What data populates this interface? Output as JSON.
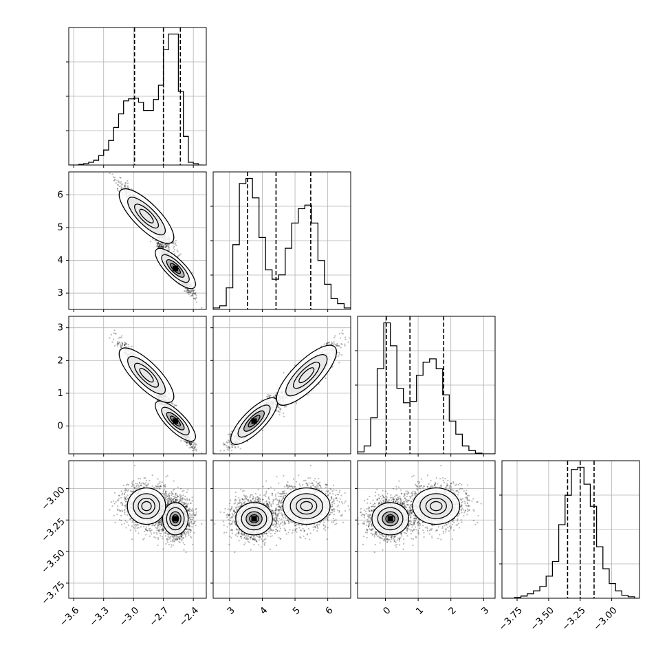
{
  "chart_data": {
    "type": "corner",
    "grid": true,
    "quantiles": [
      0.16,
      0.5,
      0.84
    ],
    "params": [
      {
        "range": [
          -3.65,
          -2.27
        ],
        "ticks": [
          -3.6,
          -3.3,
          -3.0,
          -2.7,
          -2.4
        ],
        "tick_labels": [
          "−3.6",
          "−3.3",
          "−3.0",
          "−2.7",
          "−2.4"
        ],
        "quantile_values": [
          -2.99,
          -2.7,
          -2.53
        ]
      },
      {
        "range": [
          2.5,
          6.7
        ],
        "ticks": [
          3,
          4,
          5,
          6
        ],
        "tick_labels": [
          "3",
          "4",
          "5",
          "6"
        ],
        "quantile_values": [
          3.55,
          4.42,
          5.48
        ]
      },
      {
        "range": [
          -0.85,
          3.35
        ],
        "ticks": [
          0,
          1,
          2,
          3
        ],
        "tick_labels": [
          "0",
          "1",
          "2",
          "3"
        ],
        "quantile_values": [
          0.03,
          0.75,
          1.78
        ]
      },
      {
        "range": [
          -3.87,
          -2.78
        ],
        "ticks": [
          -3.75,
          -3.5,
          -3.25,
          -3.0
        ],
        "tick_labels": [
          "−3.75",
          "−3.50",
          "−3.25",
          "−3.00"
        ],
        "quantile_values": [
          -3.35,
          -3.25,
          -3.14
        ]
      }
    ],
    "histograms": [
      {
        "bins": [
          -3.65,
          -3.6,
          -3.55,
          -3.5,
          -3.45,
          -3.4,
          -3.35,
          -3.3,
          -3.25,
          -3.2,
          -3.15,
          -3.1,
          -3.05,
          -3.0,
          -2.95,
          -2.9,
          -2.85,
          -2.8,
          -2.75,
          -2.7,
          -2.65,
          -2.6,
          -2.55,
          -2.5,
          -2.45,
          -2.4,
          -2.35,
          -2.3
        ],
        "counts": [
          0,
          0,
          1,
          2,
          4,
          7,
          14,
          22,
          36,
          55,
          75,
          94,
          97,
          98,
          92,
          80,
          80,
          96,
          117,
          169,
          192,
          192,
          108,
          42,
          4,
          2,
          0
        ]
      },
      {
        "bins": [
          2.5,
          2.7,
          2.9,
          3.1,
          3.3,
          3.5,
          3.7,
          3.9,
          4.1,
          4.3,
          4.5,
          4.7,
          4.9,
          5.1,
          5.3,
          5.5,
          5.7,
          5.9,
          6.1,
          6.3,
          6.5,
          6.7
        ],
        "counts": [
          2,
          5,
          30,
          90,
          175,
          182,
          155,
          100,
          55,
          42,
          48,
          85,
          120,
          140,
          145,
          120,
          68,
          35,
          15,
          8,
          2
        ]
      },
      {
        "bins": [
          -0.85,
          -0.65,
          -0.45,
          -0.25,
          -0.05,
          0.15,
          0.35,
          0.55,
          0.75,
          0.95,
          1.15,
          1.35,
          1.55,
          1.75,
          1.95,
          2.15,
          2.35,
          2.55,
          2.75,
          2.95,
          3.15,
          3.35
        ],
        "counts": [
          3,
          12,
          55,
          130,
          200,
          165,
          100,
          78,
          80,
          120,
          140,
          145,
          130,
          90,
          50,
          30,
          12,
          5,
          1,
          0,
          0
        ]
      },
      {
        "bins": [
          -3.87,
          -3.82,
          -3.77,
          -3.72,
          -3.67,
          -3.62,
          -3.57,
          -3.52,
          -3.47,
          -3.42,
          -3.37,
          -3.32,
          -3.27,
          -3.22,
          -3.17,
          -3.12,
          -3.07,
          -3.02,
          -2.97,
          -2.92,
          -2.87,
          -2.82,
          -2.78
        ],
        "counts": [
          0,
          0,
          1,
          3,
          6,
          10,
          16,
          30,
          50,
          100,
          140,
          175,
          178,
          155,
          125,
          70,
          40,
          20,
          10,
          4,
          2,
          0
        ]
      }
    ],
    "pair_modes": [
      {
        "weight": 0.55,
        "mean": [
          -2.58,
          3.75,
          0.15,
          -3.24
        ],
        "sd": [
          0.08,
          0.35,
          0.35,
          0.08
        ]
      },
      {
        "weight": 0.45,
        "mean": [
          -2.87,
          5.35,
          1.55,
          -3.14
        ],
        "sd": [
          0.12,
          0.45,
          0.45,
          0.09
        ]
      }
    ],
    "pair_correlation": [
      [
        1,
        -0.95,
        -0.95,
        0.1
      ],
      [
        -0.95,
        1,
        0.98,
        -0.05
      ],
      [
        -0.95,
        0.98,
        1,
        -0.05
      ],
      [
        0.1,
        -0.05,
        -0.05,
        1
      ]
    ]
  }
}
